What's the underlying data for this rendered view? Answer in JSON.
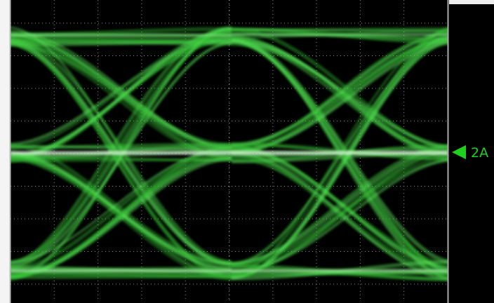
{
  "marker": {
    "label": "2A"
  }
}
